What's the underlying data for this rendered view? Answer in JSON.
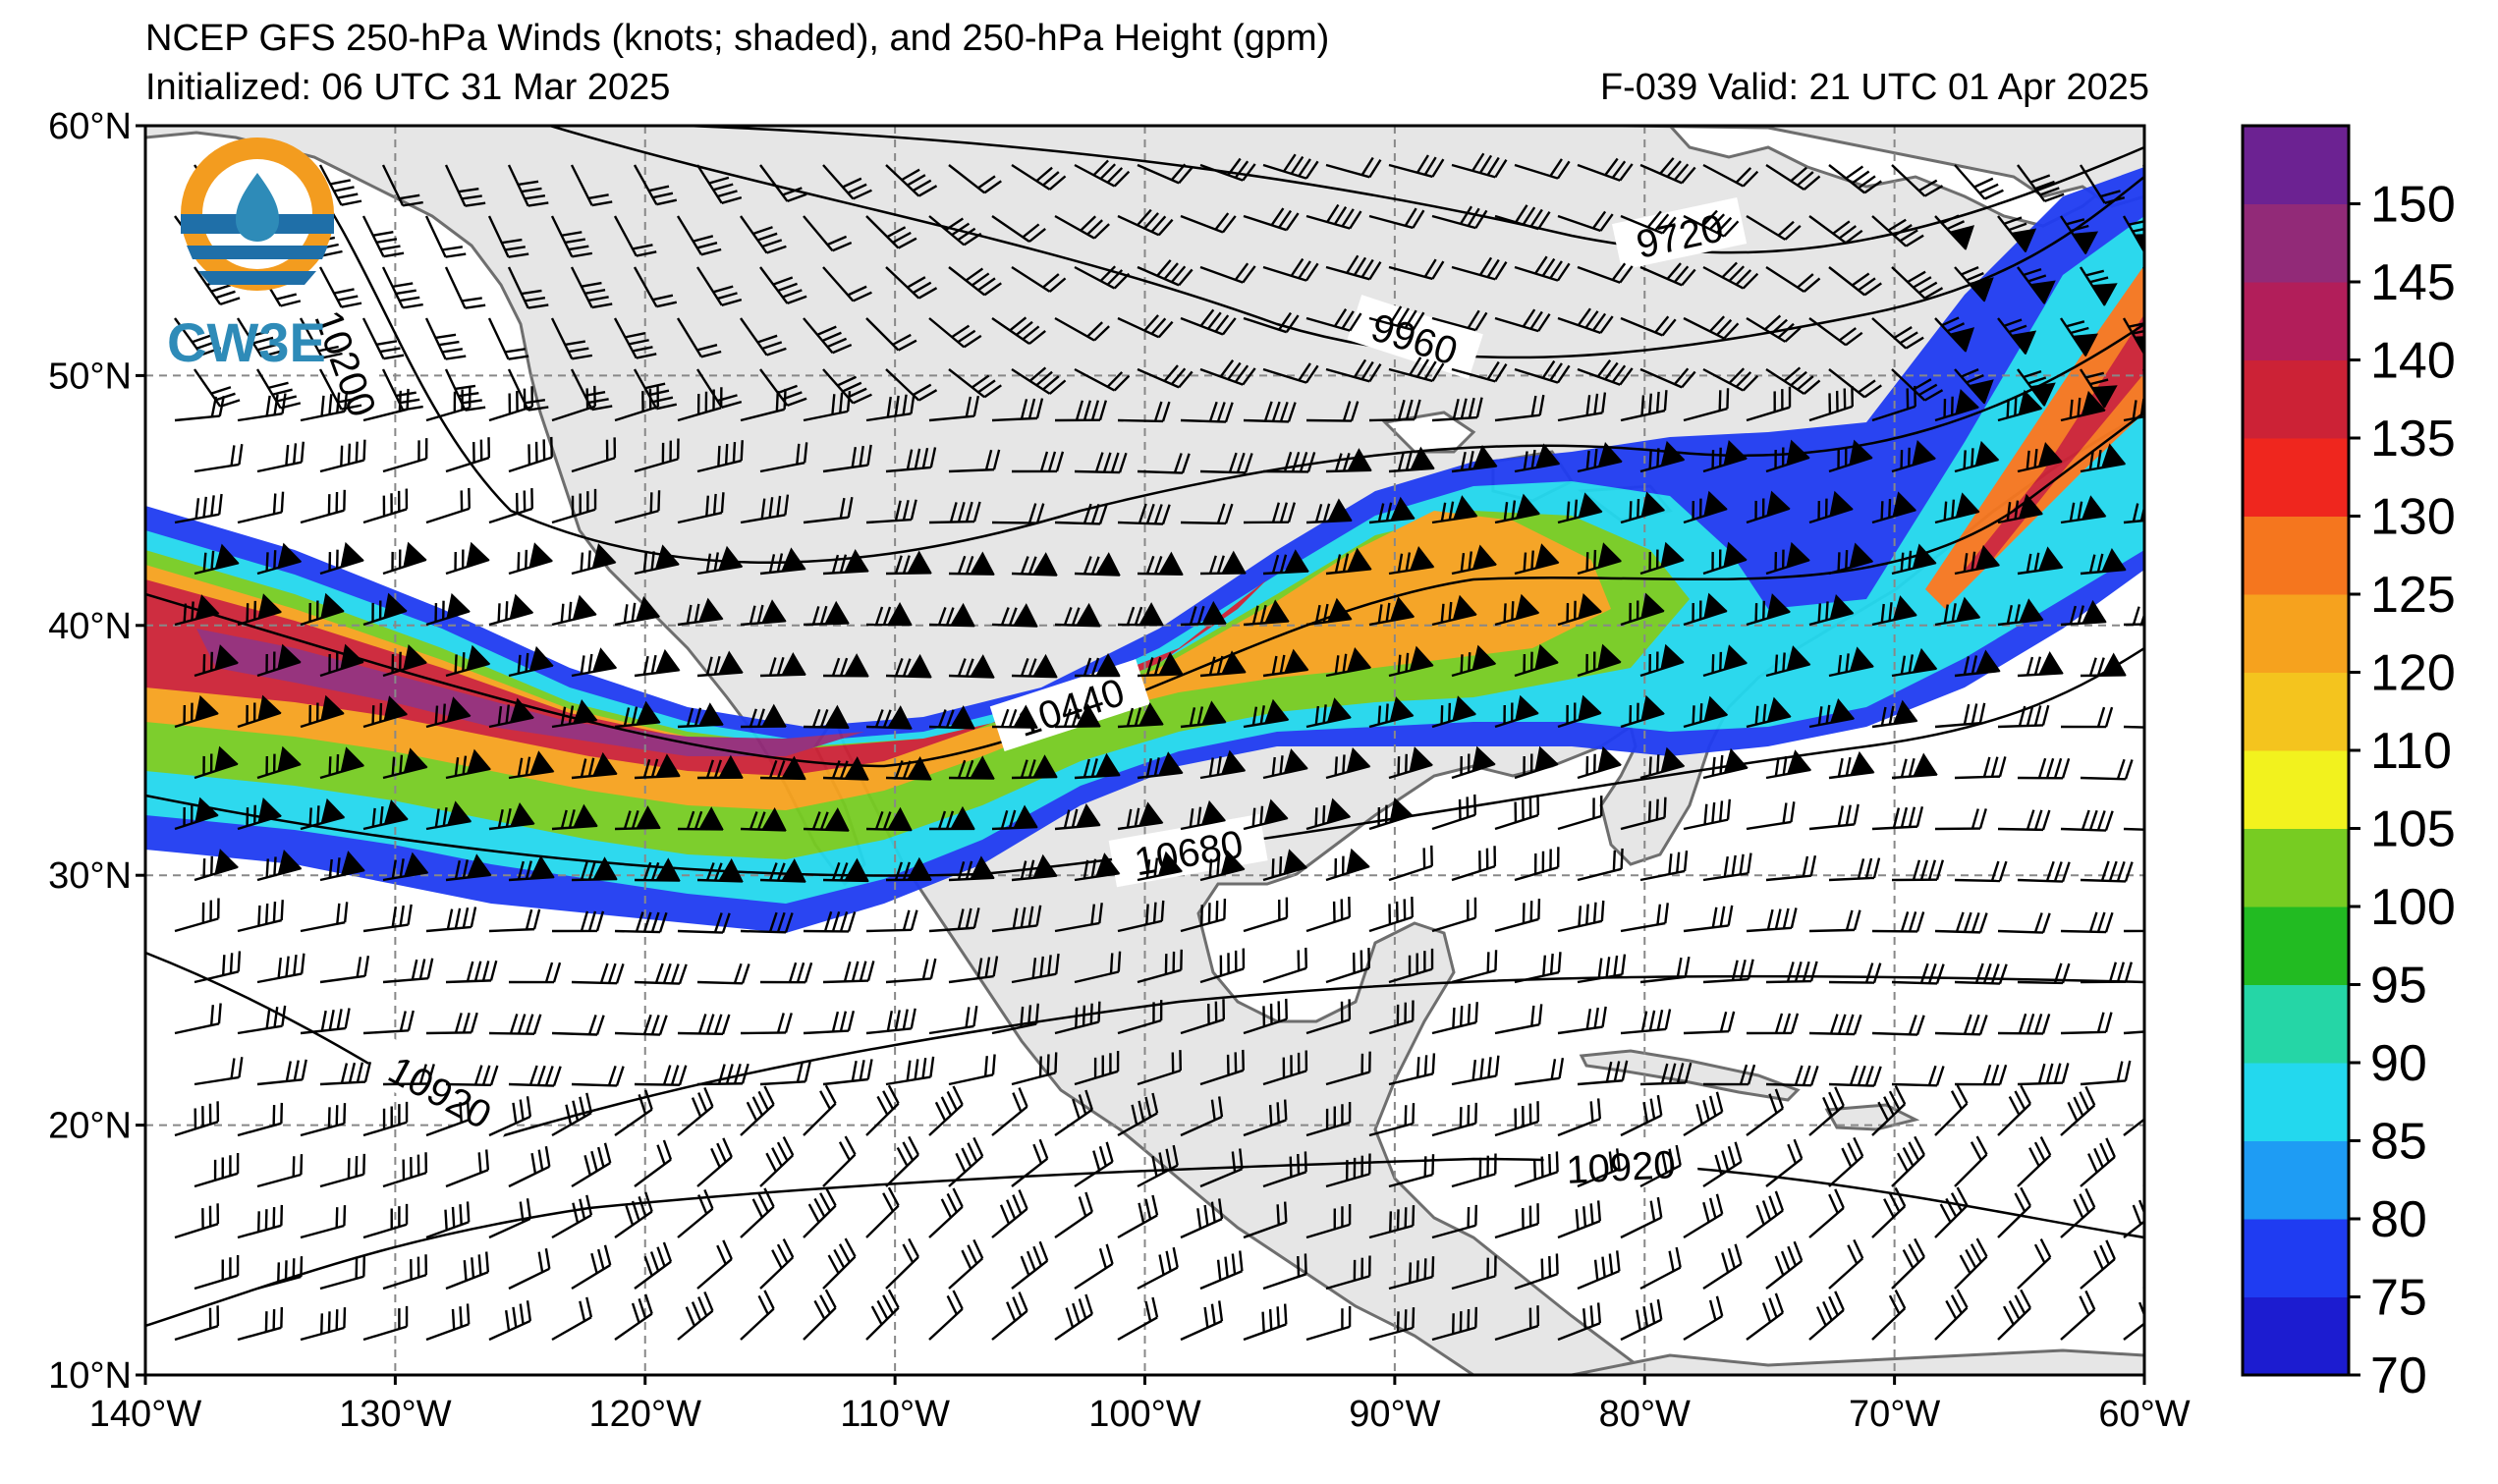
{
  "title": {
    "line1": "NCEP GFS 250-hPa Winds (knots; shaded), and 250-hPa Height (gpm)",
    "line2": "Initialized: 06 UTC 31 Mar 2025",
    "valid": "F-039  Valid: 21 UTC 01 Apr 2025"
  },
  "logo": {
    "text": "CW3E"
  },
  "map": {
    "lon_range": [
      -140,
      -60
    ],
    "lat_range": [
      10,
      60
    ],
    "lon_ticks": [
      {
        "value": -140,
        "label": "140°W"
      },
      {
        "value": -130,
        "label": "130°W"
      },
      {
        "value": -120,
        "label": "120°W"
      },
      {
        "value": -110,
        "label": "110°W"
      },
      {
        "value": -100,
        "label": "100°W"
      },
      {
        "value": -90,
        "label": "90°W"
      },
      {
        "value": -80,
        "label": "80°W"
      },
      {
        "value": -70,
        "label": "70°W"
      },
      {
        "value": -60,
        "label": "60°W"
      }
    ],
    "lat_ticks": [
      {
        "value": 60,
        "label": "60°N"
      },
      {
        "value": 50,
        "label": "50°N"
      },
      {
        "value": 40,
        "label": "40°N"
      },
      {
        "value": 30,
        "label": "30°N"
      },
      {
        "value": 20,
        "label": "20°N"
      },
      {
        "value": 10,
        "label": "10°N"
      }
    ],
    "gridlines": "dashed",
    "land_color": "#e6e6e6",
    "coast_color": "#6e6e6e"
  },
  "height_contours": [
    {
      "label": "9720"
    },
    {
      "label": "9960"
    },
    {
      "label": "10200"
    },
    {
      "label": "10440"
    },
    {
      "label": "10680"
    },
    {
      "label": "10920"
    },
    {
      "label": "10920"
    }
  ],
  "colorbar": {
    "min": 70,
    "max": 155,
    "levels": [
      {
        "value": 70,
        "color": "#1c1cd0"
      },
      {
        "value": 75,
        "color": "#1f3cf2"
      },
      {
        "value": 80,
        "color": "#1e9cf4"
      },
      {
        "value": 85,
        "color": "#23d8ee"
      },
      {
        "value": 90,
        "color": "#25d6a6"
      },
      {
        "value": 95,
        "color": "#22bb22"
      },
      {
        "value": 100,
        "color": "#77cc22"
      },
      {
        "value": 105,
        "color": "#f2f21e"
      },
      {
        "value": 110,
        "color": "#f4c41e"
      },
      {
        "value": 120,
        "color": "#f6a21e"
      },
      {
        "value": 125,
        "color": "#f5761e"
      },
      {
        "value": 130,
        "color": "#ef261e"
      },
      {
        "value": 135,
        "color": "#cc2236"
      },
      {
        "value": 140,
        "color": "#b21e5a"
      },
      {
        "value": 145,
        "color": "#922a78"
      },
      {
        "value": 150,
        "color": "#6c2292"
      }
    ],
    "tick_labels": [
      "70",
      "75",
      "80",
      "85",
      "90",
      "95",
      "100",
      "105",
      "110",
      "120",
      "125",
      "130",
      "135",
      "140",
      "145",
      "150"
    ]
  }
}
